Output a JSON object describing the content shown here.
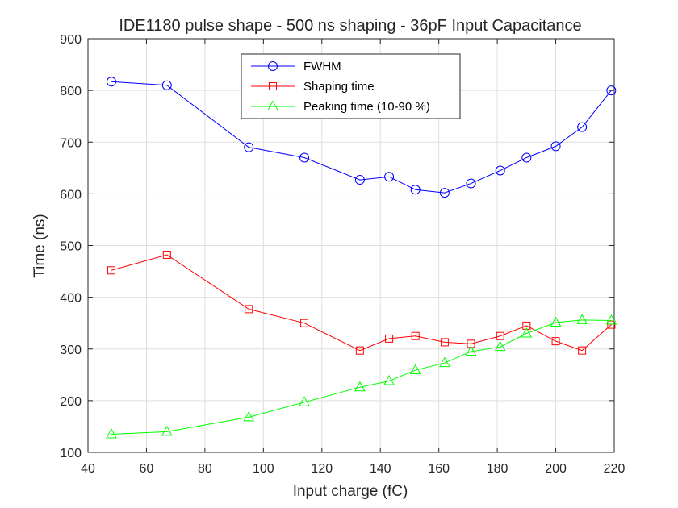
{
  "chart_data": {
    "type": "line",
    "title": "IDE1180 pulse shape - 500 ns shaping - 36pF Input Capacitance",
    "xlabel": "Input charge (fC)",
    "ylabel": "Time (ns)",
    "xlim": [
      40,
      220
    ],
    "ylim": [
      100,
      900
    ],
    "xticks": [
      40,
      60,
      80,
      100,
      120,
      140,
      160,
      180,
      200,
      220
    ],
    "yticks": [
      100,
      200,
      300,
      400,
      500,
      600,
      700,
      800,
      900
    ],
    "grid": true,
    "legend_position": "top-center",
    "series": [
      {
        "name": "FWHM",
        "color": "#0000ff",
        "marker": "circle",
        "x": [
          48,
          67,
          95,
          114,
          133,
          143,
          152,
          162,
          171,
          181,
          190,
          200,
          209,
          219
        ],
        "y": [
          817,
          810,
          690,
          670,
          627,
          633,
          608,
          602,
          620,
          645,
          670,
          692,
          729,
          800
        ]
      },
      {
        "name": "Shaping time",
        "color": "#ff0000",
        "marker": "square",
        "x": [
          48,
          67,
          95,
          114,
          133,
          143,
          152,
          162,
          171,
          181,
          190,
          200,
          209,
          219
        ],
        "y": [
          452,
          482,
          377,
          350,
          297,
          320,
          325,
          313,
          310,
          325,
          345,
          315,
          297,
          347
        ]
      },
      {
        "name": "Peaking time (10-90 %)",
        "color": "#00ff00",
        "marker": "triangle",
        "x": [
          48,
          67,
          95,
          114,
          133,
          143,
          152,
          162,
          171,
          181,
          190,
          200,
          209,
          219
        ],
        "y": [
          135,
          140,
          168,
          197,
          226,
          238,
          259,
          273,
          295,
          304,
          330,
          351,
          356,
          355
        ]
      }
    ]
  }
}
